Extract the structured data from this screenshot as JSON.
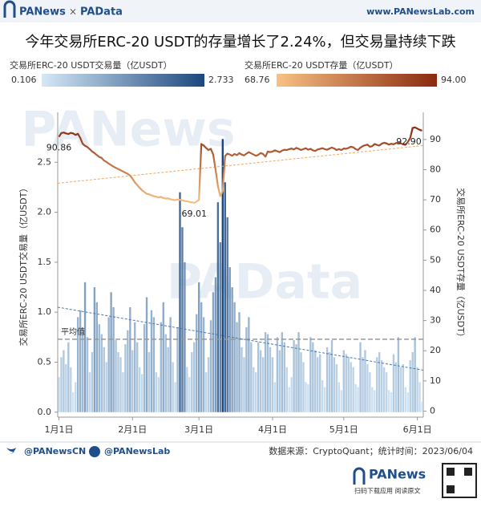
{
  "header": {
    "brand_left": "PANews",
    "separator": "×",
    "brand_right": "PAData",
    "url": "www.PANewsLab.com"
  },
  "chart_data": {
    "type": "combo",
    "title": "今年交易所ERC-20 USDT的存量增长了2.24%，但交易量持续下跌",
    "watermarks": [
      "PANews",
      "PAData"
    ],
    "categories": [
      "1月1日",
      null,
      null,
      null,
      null,
      null,
      null,
      null,
      null,
      null,
      null,
      null,
      null,
      null,
      null,
      null,
      null,
      null,
      null,
      null,
      null,
      null,
      null,
      null,
      null,
      null,
      null,
      null,
      null,
      null,
      null,
      "2月1日",
      null,
      null,
      null,
      null,
      null,
      null,
      null,
      null,
      null,
      null,
      null,
      null,
      null,
      null,
      null,
      null,
      null,
      null,
      null,
      null,
      null,
      null,
      null,
      null,
      null,
      null,
      null,
      "3月1日",
      null,
      null,
      null,
      null,
      null,
      null,
      null,
      null,
      null,
      null,
      null,
      null,
      null,
      null,
      null,
      null,
      null,
      null,
      null,
      null,
      null,
      null,
      null,
      null,
      null,
      null,
      null,
      null,
      null,
      null,
      "4月1日",
      null,
      null,
      null,
      null,
      null,
      null,
      null,
      null,
      null,
      null,
      null,
      null,
      null,
      null,
      null,
      null,
      null,
      null,
      null,
      null,
      null,
      null,
      null,
      null,
      null,
      null,
      null,
      null,
      null,
      "5月1日",
      null,
      null,
      null,
      null,
      null,
      null,
      null,
      null,
      null,
      null,
      null,
      null,
      null,
      null,
      null,
      null,
      null,
      null,
      null,
      null,
      null,
      null,
      null,
      null,
      null,
      null,
      null,
      null,
      null,
      null,
      "6月1日",
      null,
      null
    ],
    "series": [
      {
        "name": "交易所ERC-20 USDT交易量（亿USDT）",
        "kind": "bar",
        "axis": "y",
        "colors": [
          "#d4e8f7",
          "#1c477d"
        ],
        "color_range": [
          0.106,
          2.733
        ],
        "trendline": {
          "start": 1.05,
          "end": 0.42,
          "color": "#4a78b0"
        },
        "mean": {
          "value": 0.73,
          "label": "平均值",
          "color": "#999999"
        },
        "values": [
          0.35,
          0.55,
          0.62,
          0.48,
          0.7,
          0.45,
          0.2,
          0.3,
          0.95,
          1.02,
          0.85,
          1.3,
          0.75,
          0.4,
          0.6,
          1.25,
          1.1,
          0.88,
          0.78,
          0.65,
          0.5,
          0.95,
          1.2,
          1.05,
          0.72,
          0.6,
          0.55,
          0.4,
          0.68,
          0.82,
          1.05,
          0.62,
          0.9,
          0.7,
          0.45,
          0.38,
          0.88,
          1.15,
          0.6,
          1.02,
          0.95,
          0.4,
          0.35,
          0.9,
          1.1,
          0.78,
          0.65,
          0.95,
          0.5,
          0.3,
          0.85,
          2.2,
          1.85,
          1.5,
          0.45,
          0.35,
          0.6,
          0.7,
          0.98,
          1.3,
          1.1,
          0.95,
          0.4,
          0.55,
          0.92,
          1.2,
          1.35,
          2.1,
          1.7,
          2.733,
          2.3,
          1.95,
          1.45,
          1.25,
          1.1,
          0.9,
          1.0,
          0.65,
          0.55,
          0.85,
          0.95,
          0.7,
          0.45,
          0.4,
          0.7,
          0.62,
          0.55,
          0.8,
          0.78,
          0.65,
          0.55,
          0.3,
          0.75,
          0.62,
          0.8,
          0.7,
          0.45,
          0.25,
          0.35,
          0.72,
          0.68,
          0.8,
          0.6,
          0.5,
          0.3,
          0.28,
          0.75,
          0.7,
          0.62,
          0.55,
          0.58,
          0.32,
          0.25,
          0.65,
          0.6,
          0.72,
          0.55,
          0.48,
          0.3,
          0.22,
          0.62,
          0.58,
          0.55,
          0.5,
          0.45,
          0.28,
          0.25,
          0.7,
          0.55,
          0.62,
          0.48,
          0.4,
          0.25,
          0.22,
          0.55,
          0.6,
          0.52,
          0.45,
          0.4,
          0.22,
          0.2,
          0.58,
          0.5,
          0.75,
          0.45,
          0.48,
          0.25,
          0.2,
          0.52,
          0.6,
          0.75,
          0.45,
          0.3,
          0.106
        ]
      },
      {
        "name": "交易所ERC-20 USDT存量（亿USDT）",
        "kind": "line",
        "axis": "y2",
        "colors": [
          "#f8c184",
          "#8a2a0e"
        ],
        "color_range": [
          68.76,
          {
            "value": 94,
            "label": "94.00"
          }
        ],
        "trendline": {
          "start": 75.5,
          "end": 88.0,
          "color": "#f0a860"
        },
        "values": [
          90.86,
          92.1,
          92.3,
          92.0,
          91.8,
          92.2,
          92.0,
          91.5,
          91.9,
          90.5,
          88.6,
          87.9,
          87.5,
          86.8,
          86.0,
          85.5,
          84.8,
          84.2,
          83.9,
          83.0,
          82.6,
          82.0,
          81.5,
          81.0,
          80.6,
          80.2,
          79.8,
          79.4,
          79.0,
          78.6,
          78.0,
          77.0,
          75.8,
          74.9,
          74.0,
          73.2,
          72.6,
          72.0,
          71.8,
          71.5,
          71.2,
          71.0,
          70.8,
          71.0,
          70.6,
          70.4,
          70.5,
          70.2,
          70.0,
          69.9,
          70.1,
          70.0,
          69.8,
          69.6,
          69.5,
          69.3,
          69.2,
          69.01,
          69.4,
          70.0,
          88.5,
          88.0,
          87.2,
          86.5,
          86.9,
          85.0,
          80.0,
          74.5,
          71.2,
          73.0,
          84.5,
          85.3,
          85.0,
          84.6,
          85.2,
          84.8,
          85.5,
          85.0,
          84.7,
          85.3,
          85.8,
          85.4,
          85.0,
          84.6,
          84.9,
          85.5,
          85.2,
          84.3,
          86.0,
          85.8,
          86.0,
          86.4,
          86.1,
          85.8,
          86.3,
          86.6,
          86.5,
          86.8,
          87.0,
          86.7,
          87.2,
          86.9,
          86.5,
          86.8,
          87.1,
          86.6,
          86.9,
          86.4,
          86.2,
          86.7,
          86.9,
          87.1,
          86.8,
          86.6,
          87.0,
          87.3,
          87.0,
          86.5,
          86.8,
          86.5,
          87.0,
          86.9,
          87.2,
          87.6,
          87.4,
          86.8,
          86.5,
          87.3,
          87.8,
          88.1,
          88.3,
          87.6,
          87.8,
          88.5,
          88.2,
          88.0,
          88.6,
          88.9,
          88.7,
          88.3,
          88.6,
          88.4,
          88.8,
          89.0,
          88.7,
          88.4,
          88.2,
          89.2,
          90.5,
          93.8,
          94.0,
          93.6,
          93.2,
          92.9
        ],
        "value_labels": [
          "90.86",
          null,
          null,
          null,
          null,
          null,
          null,
          null,
          null,
          null,
          null,
          null,
          null,
          null,
          null,
          null,
          null,
          null,
          null,
          null,
          null,
          null,
          null,
          null,
          null,
          null,
          null,
          null,
          null,
          null,
          null,
          null,
          null,
          null,
          null,
          null,
          null,
          null,
          null,
          null,
          null,
          null,
          null,
          null,
          null,
          null,
          null,
          null,
          null,
          null,
          null,
          null,
          null,
          null,
          null,
          null,
          null,
          "69.01",
          null,
          null,
          null,
          null,
          null,
          null,
          null,
          null,
          null,
          null,
          null,
          null,
          null,
          null,
          null,
          null,
          null,
          null,
          null,
          null,
          null,
          null,
          null,
          null,
          null,
          null,
          null,
          null,
          null,
          null,
          null,
          null,
          null,
          null,
          null,
          null,
          null,
          null,
          null,
          null,
          null,
          null,
          null,
          null,
          null,
          null,
          null,
          null,
          null,
          null,
          null,
          null,
          null,
          null,
          null,
          null,
          null,
          null,
          null,
          null,
          null,
          null,
          null,
          null,
          null,
          null,
          null,
          null,
          null,
          null,
          null,
          null,
          null,
          null,
          null,
          null,
          null,
          null,
          null,
          null,
          null,
          null,
          null,
          null,
          null,
          null,
          null,
          null,
          null,
          null,
          null,
          null,
          null,
          null,
          null,
          "92.90"
        ]
      }
    ],
    "y_label": "交易所ERC-20 USDT交易量（亿USDT）",
    "y2_label": "交易所ERC-20 USDT存量（亿USDT）",
    "ylim": [
      -0.05,
      3.0
    ],
    "yticks": [
      {
        "value": 0,
        "label": "0.0"
      },
      0.5,
      {
        "value": 1,
        "label": "1.0"
      },
      1.5,
      {
        "value": 2,
        "label": "2.0"
      },
      2.5
    ],
    "y2lim": [
      -2,
      99
    ],
    "y2ticks": [
      0,
      10,
      20,
      30,
      40,
      50,
      60,
      70,
      80,
      90
    ]
  },
  "footer": {
    "twitter": "@PANewsCN",
    "facebook": "@PANewsLab",
    "source": "数据来源：CryptoQuant；统计时间：2023/06/04",
    "logo": "PANews",
    "qr_caption": "扫码下载应用 阅读原文"
  }
}
